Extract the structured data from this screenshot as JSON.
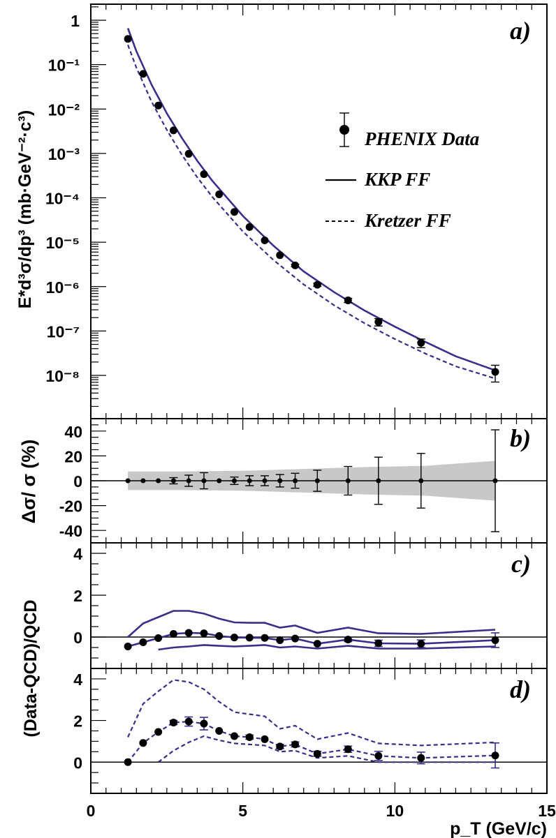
{
  "chart_data": [
    {
      "id": "a",
      "type": "scatter",
      "panel_label": "a)",
      "ylabel": "E*d³σ/dp³ (mb·GeV⁻²·c³)",
      "yscale": "log",
      "ylim": [
        1e-09,
        2
      ],
      "xlim": [
        0,
        15
      ],
      "ytick_labels": [
        "1",
        "10⁻¹",
        "10⁻²",
        "10⁻³",
        "10⁻⁴",
        "10⁻⁵",
        "10⁻⁶",
        "10⁻⁷",
        "10⁻⁸"
      ],
      "legend": {
        "placement": "right",
        "entries": [
          "PHENIX Data",
          "KKP FF",
          "Kretzer FF"
        ]
      },
      "series": [
        {
          "name": "PHENIX Data",
          "x": [
            1.22,
            1.72,
            2.22,
            2.72,
            3.22,
            3.72,
            4.22,
            4.72,
            5.22,
            5.72,
            6.22,
            6.72,
            7.45,
            8.46,
            9.46,
            10.86,
            13.3
          ],
          "y": [
            0.38,
            0.062,
            0.012,
            0.0033,
            0.00098,
            0.00034,
            0.00012,
            4.8e-05,
            2.2e-05,
            1.1e-05,
            5.1e-06,
            3e-06,
            1.1e-06,
            4.9e-07,
            1.6e-07,
            5.4e-08,
            1.2e-08
          ],
          "yerr_rel": [
            0.01,
            0.01,
            0.01,
            0.02,
            0.03,
            0.05,
            0.01,
            0.03,
            0.04,
            0.04,
            0.05,
            0.06,
            0.08,
            0.11,
            0.19,
            0.22,
            0.41
          ]
        },
        {
          "name": "KKP FF",
          "x": [
            1.22,
            1.5,
            2.0,
            2.5,
            3.0,
            3.5,
            4.0,
            5.0,
            6.0,
            7.0,
            8.0,
            9.0,
            10.0,
            11.0,
            12.0,
            13.3
          ],
          "y": [
            0.66,
            0.2,
            0.035,
            0.008,
            0.0022,
            0.00068,
            0.00024,
            3.9e-05,
            8.4e-06,
            2.2e-06,
            7.5e-07,
            2.9e-07,
            1.25e-07,
            5.7e-08,
            2.7e-08,
            1.3e-08
          ]
        },
        {
          "name": "Kretzer FF",
          "x": [
            1.22,
            1.5,
            2.0,
            2.5,
            3.0,
            3.5,
            4.0,
            5.0,
            6.0,
            7.0,
            8.0,
            9.0,
            10.0,
            11.0,
            12.0,
            13.3
          ],
          "y": [
            0.28,
            0.085,
            0.0145,
            0.0034,
            0.00092,
            0.00029,
            0.000104,
            1.75e-05,
            4e-06,
            1.12e-06,
            3.8e-07,
            1.5e-07,
            6.6e-08,
            3.1e-08,
            1.6e-08,
            8.5e-09
          ]
        }
      ]
    },
    {
      "id": "b",
      "type": "scatter",
      "panel_label": "b)",
      "ylabel": "Δσ/ σ (%)",
      "ylim": [
        -50,
        50
      ],
      "yticks": [
        -40,
        -20,
        0,
        20,
        40
      ],
      "xlim": [
        0,
        15
      ],
      "series": [
        {
          "name": "",
          "x": [
            1.22,
            1.72,
            2.22,
            2.72,
            3.22,
            3.72,
            4.22,
            4.72,
            5.22,
            5.72,
            6.22,
            6.72,
            7.45,
            8.46,
            9.46,
            10.86,
            13.3
          ],
          "y": [
            0,
            0,
            0,
            0,
            0,
            0,
            0,
            0,
            0,
            0,
            0,
            0,
            0,
            0,
            0,
            0,
            0
          ],
          "yerr": [
            1,
            1,
            1,
            2.5,
            4.5,
            6.5,
            1,
            3,
            4,
            4,
            5,
            6,
            8.5,
            11.5,
            19,
            22,
            41
          ]
        }
      ],
      "band": {
        "x": [
          1.22,
          3.0,
          5.0,
          7.0,
          9.0,
          11.0,
          13.3
        ],
        "upper": [
          7.5,
          7.5,
          8,
          9.5,
          11,
          12,
          16
        ],
        "lower": [
          -7.5,
          -7.5,
          -8,
          -9.5,
          -11,
          -12,
          -16
        ]
      }
    },
    {
      "id": "c",
      "type": "line",
      "panel_label": "c)",
      "ylabel": "(Data-QCD)/QCD",
      "ylim": [
        -1.5,
        4.5
      ],
      "yticks": [
        0,
        2,
        4
      ],
      "xlim": [
        0,
        15
      ],
      "series": [
        {
          "name": "",
          "x": [
            1.22,
            1.72,
            2.22,
            2.72,
            3.22,
            3.72,
            4.22,
            4.72,
            5.22,
            5.72,
            6.22,
            6.72,
            7.45,
            8.46,
            9.46,
            10.86,
            13.3
          ],
          "y": [
            -0.45,
            -0.25,
            -0.05,
            0.15,
            0.2,
            0.18,
            0.05,
            -0.02,
            -0.03,
            -0.04,
            -0.15,
            -0.07,
            -0.32,
            -0.12,
            -0.3,
            -0.32,
            -0.15
          ],
          "yerr": [
            0.02,
            0.02,
            0.02,
            0.03,
            0.04,
            0.05,
            0.02,
            0.03,
            0.04,
            0.04,
            0.05,
            0.06,
            0.08,
            0.1,
            0.15,
            0.18,
            0.35
          ]
        },
        {
          "name": "",
          "x": [
            1.22,
            1.72,
            2.22,
            2.72,
            3.22,
            3.72,
            4.22,
            4.72,
            5.22,
            5.72,
            6.22,
            6.72,
            7.45,
            8.46,
            9.46,
            10.86,
            13.3
          ],
          "y": [
            0.0,
            0.65,
            0.95,
            1.25,
            1.25,
            1.12,
            0.88,
            0.7,
            0.68,
            0.68,
            0.45,
            0.55,
            0.2,
            0.45,
            0.18,
            0.15,
            0.35
          ]
        },
        {
          "name": "",
          "x": [
            2.22,
            2.72,
            3.22,
            3.72,
            4.22,
            4.72,
            5.22,
            5.72,
            6.22,
            6.72,
            7.45,
            8.46,
            9.46,
            10.86,
            13.3
          ],
          "y": [
            -0.6,
            -0.5,
            -0.45,
            -0.38,
            -0.42,
            -0.45,
            -0.42,
            -0.38,
            -0.5,
            -0.45,
            -0.55,
            -0.42,
            -0.55,
            -0.55,
            -0.45
          ]
        }
      ]
    },
    {
      "id": "d",
      "type": "line",
      "panel_label": "d)",
      "ylim": [
        -1.5,
        4.5
      ],
      "yticks": [
        0,
        2,
        4
      ],
      "xlim": [
        0,
        15
      ],
      "xticks": [
        0,
        5,
        10,
        15
      ],
      "xlabel": "p_T (GeV/c)",
      "series": [
        {
          "name": "",
          "x": [
            1.22,
            1.72,
            2.22,
            2.72,
            3.22,
            3.72,
            4.22,
            4.72,
            5.22,
            5.72,
            6.22,
            6.72,
            7.45,
            8.46,
            9.46,
            10.86,
            13.3
          ],
          "y": [
            0.0,
            0.92,
            1.45,
            1.9,
            1.95,
            1.85,
            1.5,
            1.25,
            1.2,
            1.1,
            0.75,
            0.85,
            0.4,
            0.62,
            0.3,
            0.2,
            0.32
          ],
          "yerr": [
            0.03,
            0.05,
            0.06,
            0.1,
            0.22,
            0.3,
            0.05,
            0.08,
            0.1,
            0.08,
            0.1,
            0.12,
            0.12,
            0.15,
            0.22,
            0.28,
            0.6
          ]
        },
        {
          "name": "",
          "x": [
            1.22,
            1.72,
            2.22,
            2.72,
            3.22,
            3.72,
            4.22,
            4.72,
            5.22,
            5.72,
            6.22,
            6.72,
            7.45,
            8.46,
            9.46,
            10.86,
            13.3
          ],
          "y": [
            1.2,
            2.8,
            3.4,
            3.95,
            3.85,
            3.5,
            2.9,
            2.4,
            2.3,
            2.2,
            1.6,
            1.75,
            1.1,
            1.4,
            0.9,
            0.8,
            0.95
          ]
        },
        {
          "name": "",
          "x": [
            2.22,
            2.72,
            3.22,
            3.72,
            4.22,
            4.72,
            5.22,
            5.72,
            6.22,
            6.72,
            7.45,
            8.46,
            9.46,
            10.86,
            13.3
          ],
          "y": [
            0.0,
            0.55,
            0.95,
            1.25,
            1.05,
            0.9,
            0.85,
            0.8,
            0.5,
            0.55,
            0.2,
            0.3,
            0.0,
            0.0,
            0.0
          ]
        }
      ]
    }
  ]
}
